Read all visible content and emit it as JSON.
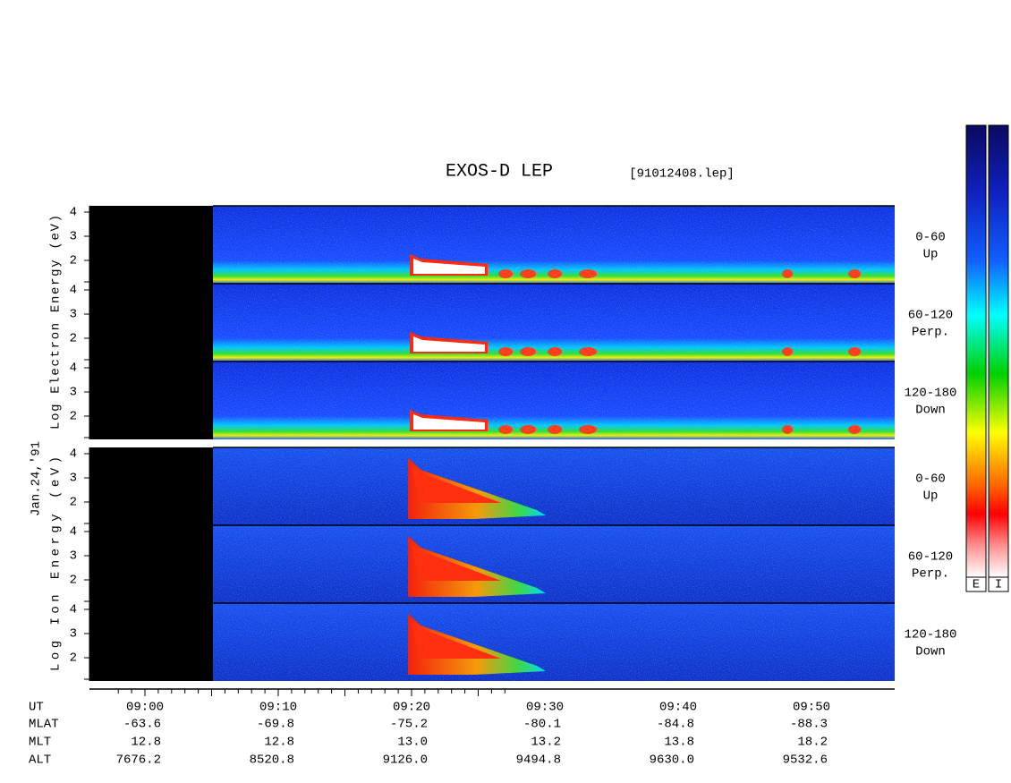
{
  "header": {
    "title": "EXOS-D LEP",
    "file": "[91012408.lep]"
  },
  "date": "Jan.24,'91",
  "panels": [
    {
      "label": "Log Electron Energy (eV)",
      "kind": "electron",
      "subpanels": [
        {
          "angle": "0-60",
          "direction": "Up"
        },
        {
          "angle": "60-120",
          "direction": "Perp."
        },
        {
          "angle": "120-180",
          "direction": "Down"
        }
      ]
    },
    {
      "label": "Log Ion Energy (eV)",
      "kind": "ion",
      "subpanels": [
        {
          "angle": "0-60",
          "direction": "Up"
        },
        {
          "angle": "60-120",
          "direction": "Perp."
        },
        {
          "angle": "120-180",
          "direction": "Down"
        }
      ]
    }
  ],
  "yticks": [
    2,
    3,
    4
  ],
  "time_axis": {
    "rows": [
      {
        "name": "UT",
        "values": [
          "09:00",
          "09:10",
          "09:20",
          "09:30",
          "09:40",
          "09:50"
        ]
      },
      {
        "name": "MLAT",
        "values": [
          "-63.6",
          "-69.8",
          "-75.2",
          "-80.1",
          "-84.8",
          "-88.3"
        ]
      },
      {
        "name": "MLT",
        "values": [
          "12.8",
          "12.8",
          "13.0",
          "13.2",
          "13.8",
          "18.2"
        ]
      },
      {
        "name": "ALT",
        "values": [
          "7676.2",
          "8520.8",
          "9126.0",
          "9494.8",
          "9630.0",
          "9532.6"
        ]
      }
    ]
  },
  "colorbars": [
    "E",
    "I"
  ]
}
